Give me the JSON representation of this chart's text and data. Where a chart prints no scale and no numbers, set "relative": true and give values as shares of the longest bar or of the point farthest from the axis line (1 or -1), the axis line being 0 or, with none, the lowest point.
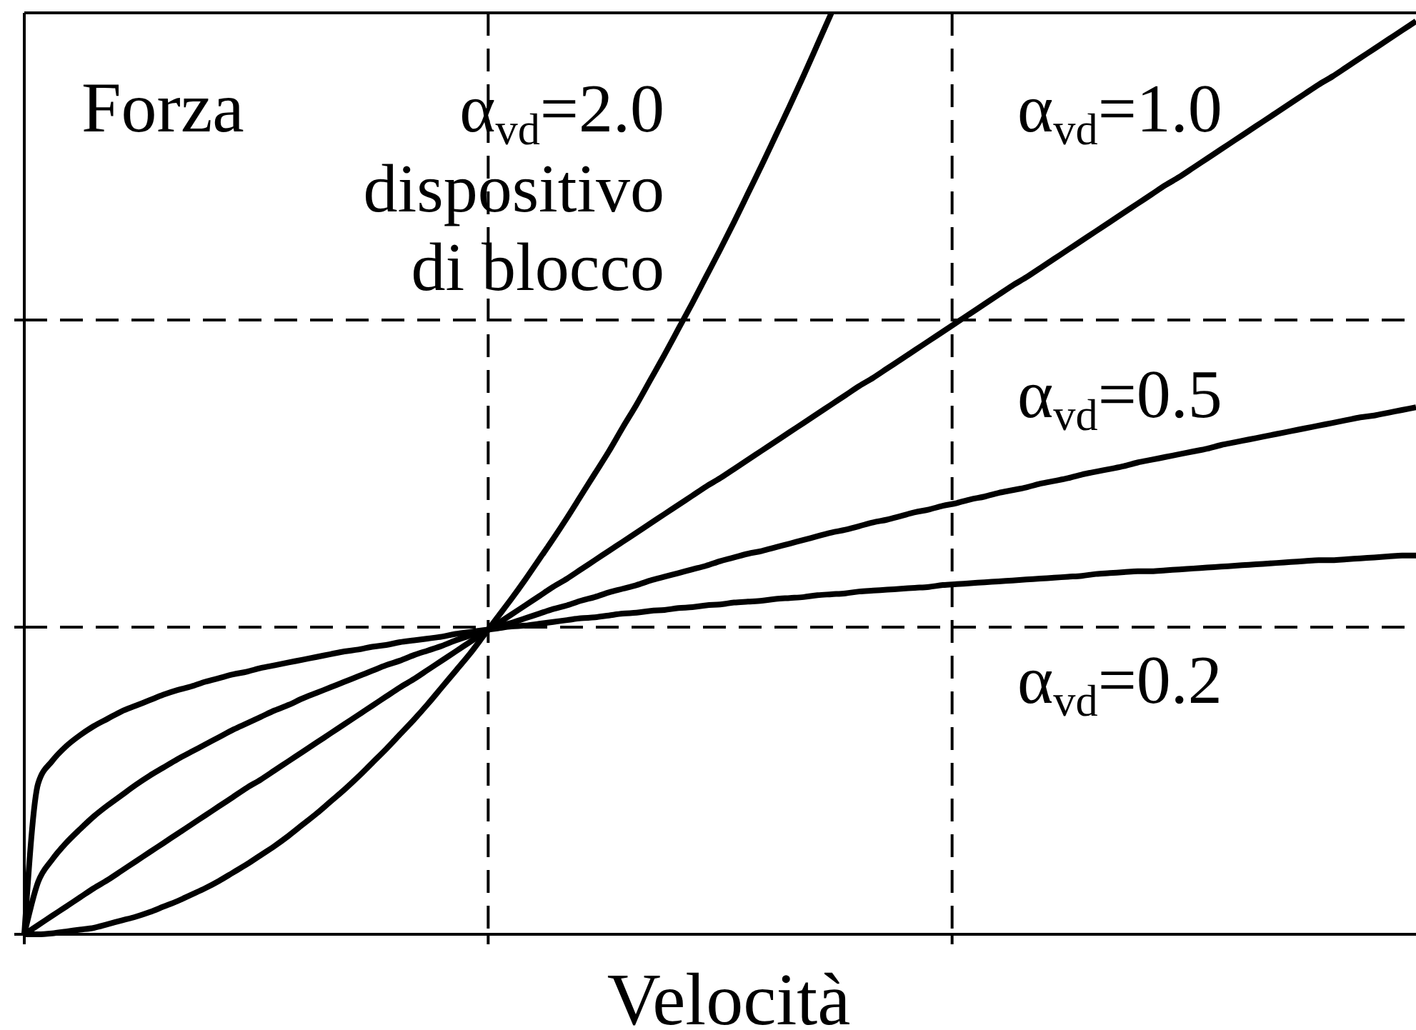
{
  "chart_data": {
    "type": "line",
    "relative": true,
    "xlabel": "Velocità",
    "ylabel": "Forza",
    "grid": true,
    "categories": [
      null,
      null,
      null,
      null,
      null,
      null,
      null,
      null,
      null,
      null,
      null,
      null,
      null,
      null,
      null,
      null,
      null,
      null,
      null,
      null,
      null,
      null,
      null,
      null,
      null,
      null,
      null,
      null,
      null,
      null,
      null,
      null,
      null,
      null,
      null,
      null,
      null,
      null,
      null,
      null,
      null,
      null,
      null,
      null,
      null,
      null,
      null,
      null,
      null,
      null,
      null,
      null,
      null,
      null,
      null,
      null,
      null,
      null,
      null,
      null,
      null,
      null,
      null,
      null,
      null,
      null,
      null,
      null,
      null,
      null,
      null,
      null,
      null,
      null,
      null,
      null,
      null,
      null,
      null,
      null,
      null,
      null,
      null,
      null,
      null,
      null,
      null,
      null,
      null,
      null,
      null,
      null,
      null,
      null,
      null,
      null,
      null,
      null,
      null,
      null,
      null
    ],
    "annotations": [
      "dispositivo di blocco"
    ],
    "series": [
      {
        "name": "α$_{vd}$=2.0",
        "color": "#000000",
        "values": [
          0,
          0,
          0.001,
          0.003,
          0.005,
          0.007,
          0.011,
          0.015,
          0.019,
          0.024,
          0.03,
          0.036,
          0.043,
          0.05,
          0.058,
          0.067,
          0.076,
          0.086,
          0.096,
          0.107,
          0.119,
          0.131,
          0.144,
          0.157,
          0.171,
          0.186,
          0.201,
          0.217,
          0.233,
          0.25,
          0.268,
          0.286,
          0.304,
          0.324,
          0.344,
          0.364,
          0.385,
          0.407,
          0.429,
          0.452,
          0.476,
          0.5,
          0.524,
          0.55,
          0.575,
          0.602,
          0.629,
          0.657,
          0.685,
          0.714,
          0.743,
          0.773,
          0.804,
          0.835,
          0.867,
          0.899,
          0.932,
          0.966,
          1,
          null,
          null,
          null,
          null,
          null,
          null,
          null,
          null,
          null,
          null,
          null,
          null,
          null,
          null,
          null,
          null,
          null,
          null,
          null,
          null,
          null,
          null,
          null,
          null,
          null,
          null,
          null,
          null,
          null,
          null,
          null,
          null,
          null,
          null,
          null,
          null,
          null,
          null,
          null,
          null,
          null,
          null
        ]
      },
      {
        "name": "α$_{vd}$=1.0",
        "color": "#000000",
        "values": [
          0,
          0.01,
          0.02,
          0.03,
          0.04,
          0.05,
          0.059,
          0.069,
          0.079,
          0.089,
          0.099,
          0.109,
          0.119,
          0.129,
          0.139,
          0.149,
          0.159,
          0.168,
          0.178,
          0.188,
          0.198,
          0.208,
          0.218,
          0.228,
          0.238,
          0.248,
          0.258,
          0.268,
          0.277,
          0.287,
          0.297,
          0.307,
          0.317,
          0.327,
          0.337,
          0.347,
          0.357,
          0.367,
          0.377,
          0.386,
          0.396,
          0.406,
          0.416,
          0.426,
          0.436,
          0.446,
          0.456,
          0.466,
          0.476,
          0.486,
          0.495,
          0.505,
          0.515,
          0.525,
          0.535,
          0.545,
          0.555,
          0.565,
          0.575,
          0.585,
          0.595,
          0.604,
          0.614,
          0.624,
          0.634,
          0.644,
          0.654,
          0.664,
          0.674,
          0.684,
          0.694,
          0.704,
          0.713,
          0.723,
          0.733,
          0.743,
          0.753,
          0.763,
          0.773,
          0.783,
          0.793,
          0.803,
          0.813,
          0.822,
          0.832,
          0.842,
          0.852,
          0.862,
          0.872,
          0.882,
          0.892,
          0.902,
          0.912,
          0.922,
          0.931,
          0.941,
          0.951,
          0.961,
          0.971,
          0.981,
          0.991
        ]
      },
      {
        "name": "α$_{vd}$=0.5",
        "color": "#000000",
        "values": [
          0,
          0.057,
          0.081,
          0.099,
          0.114,
          0.128,
          0.14,
          0.151,
          0.162,
          0.172,
          0.181,
          0.19,
          0.198,
          0.206,
          0.214,
          0.222,
          0.229,
          0.236,
          0.243,
          0.249,
          0.256,
          0.262,
          0.268,
          0.274,
          0.28,
          0.286,
          0.292,
          0.297,
          0.303,
          0.308,
          0.313,
          0.319,
          0.324,
          0.329,
          0.334,
          0.338,
          0.343,
          0.348,
          0.353,
          0.357,
          0.362,
          0.366,
          0.371,
          0.375,
          0.379,
          0.384,
          0.388,
          0.392,
          0.396,
          0.4,
          0.405,
          0.409,
          0.413,
          0.416,
          0.42,
          0.424,
          0.428,
          0.432,
          0.436,
          0.439,
          0.443,
          0.447,
          0.45,
          0.454,
          0.458,
          0.461,
          0.465,
          0.468,
          0.472,
          0.475,
          0.479,
          0.482,
          0.485,
          0.489,
          0.492,
          0.495,
          0.499,
          0.502,
          0.505,
          0.508,
          0.512,
          0.515,
          0.518,
          0.521,
          0.524,
          0.527,
          0.531,
          0.534,
          0.537,
          0.54,
          0.543,
          0.546,
          0.549,
          0.552,
          0.555,
          0.558,
          0.561,
          0.563,
          0.566,
          0.569,
          0.572
        ]
      },
      {
        "name": "α$_{vd}$=0.2",
        "color": "#000000",
        "values": [
          0,
          0.164,
          0.188,
          0.204,
          0.216,
          0.226,
          0.234,
          0.242,
          0.248,
          0.254,
          0.26,
          0.265,
          0.269,
          0.274,
          0.278,
          0.282,
          0.285,
          0.289,
          0.292,
          0.295,
          0.298,
          0.301,
          0.304,
          0.307,
          0.309,
          0.312,
          0.314,
          0.317,
          0.319,
          0.321,
          0.323,
          0.326,
          0.328,
          0.33,
          0.332,
          0.334,
          0.335,
          0.337,
          0.339,
          0.341,
          0.343,
          0.344,
          0.346,
          0.348,
          0.349,
          0.351,
          0.352,
          0.354,
          0.355,
          0.357,
          0.358,
          0.36,
          0.361,
          0.362,
          0.364,
          0.365,
          0.366,
          0.368,
          0.369,
          0.37,
          0.372,
          0.373,
          0.374,
          0.375,
          0.376,
          0.377,
          0.379,
          0.38,
          0.381,
          0.382,
          0.383,
          0.384,
          0.385,
          0.386,
          0.387,
          0.388,
          0.389,
          0.391,
          0.392,
          0.393,
          0.394,
          0.394,
          0.395,
          0.396,
          0.397,
          0.398,
          0.399,
          0.4,
          0.401,
          0.402,
          0.403,
          0.404,
          0.405,
          0.406,
          0.406,
          0.407,
          0.408,
          0.409,
          0.41,
          0.411,
          0.411
        ]
      }
    ]
  }
}
